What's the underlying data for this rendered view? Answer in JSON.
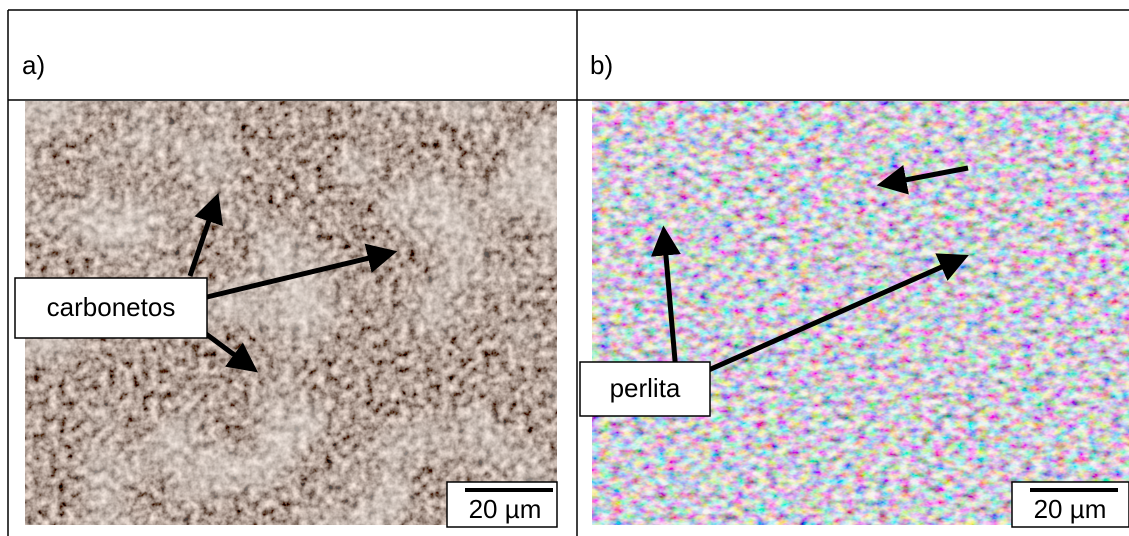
{
  "panels": [
    {
      "label": "a)",
      "annotation": "carbonetos",
      "scale_bar": "20 µm"
    },
    {
      "label": "b)",
      "annotation": "perlita",
      "scale_bar": "20 µm"
    }
  ]
}
